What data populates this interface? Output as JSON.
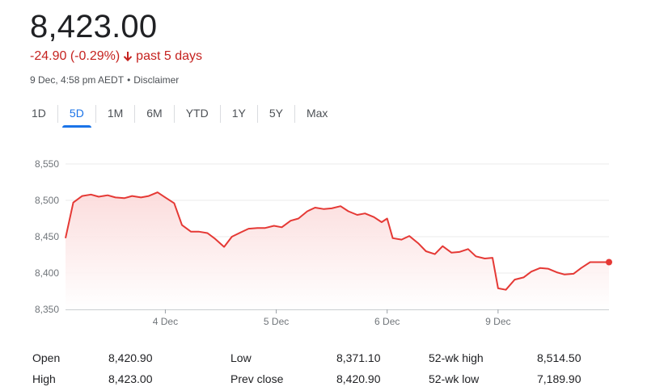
{
  "quote": {
    "price": "8,423.00",
    "change": "-24.90 (-0.29%)",
    "period": "past 5 days",
    "timestamp": "9 Dec, 4:58 pm AEDT",
    "separator": "•",
    "disclaimer": "Disclaimer"
  },
  "tabs": [
    {
      "label": "1D",
      "active": false
    },
    {
      "label": "5D",
      "active": true
    },
    {
      "label": "1M",
      "active": false
    },
    {
      "label": "6M",
      "active": false
    },
    {
      "label": "YTD",
      "active": false
    },
    {
      "label": "1Y",
      "active": false
    },
    {
      "label": "5Y",
      "active": false
    },
    {
      "label": "Max",
      "active": false
    }
  ],
  "colors": {
    "line": "#e53935",
    "fill": "#fde5e5",
    "accent": "#1a73e8",
    "negative": "#c5221f"
  },
  "chart_data": {
    "type": "area",
    "ylim": [
      8350,
      8550
    ],
    "y_ticks": [
      "8,550",
      "8,500",
      "8,450",
      "8,400",
      "8,350"
    ],
    "y_tick_values": [
      8550,
      8500,
      8450,
      8400,
      8350
    ],
    "x_ticks": [
      "4 Dec",
      "5 Dec",
      "6 Dec",
      "9 Dec"
    ],
    "x_tick_positions": [
      9,
      19,
      29,
      39
    ],
    "x_range": [
      0,
      49
    ],
    "grid": true,
    "series": [
      {
        "x": [
          0,
          0.7,
          1.5,
          2.3,
          3,
          3.8,
          4.5,
          5.3,
          6,
          6.8,
          7.5,
          8.3,
          9,
          9.8,
          10.5,
          11.3,
          12,
          12.8,
          13.5,
          14.3,
          15,
          15.8,
          16.5,
          17.3,
          18,
          18.8,
          19.5,
          20.3,
          21,
          21.8,
          22.5,
          23.3,
          24,
          24.8,
          25.5,
          26.3,
          27,
          27.8,
          28.5,
          29,
          29.5,
          30.3,
          31,
          31.8,
          32.5,
          33.3,
          34,
          34.8,
          35.5,
          36.3,
          37,
          37.8,
          38.5,
          39,
          39.7,
          40.5,
          41.3,
          42,
          42.8,
          43.5,
          44.3,
          45,
          45.8,
          46.5,
          47.3,
          48,
          48.8,
          49
        ],
        "values": [
          8448,
          8497,
          8506,
          8508,
          8505,
          8507,
          8504,
          8503,
          8506,
          8504,
          8506,
          8511,
          8504,
          8496,
          8466,
          8457,
          8457,
          8455,
          8447,
          8436,
          8450,
          8456,
          8461,
          8462,
          8462,
          8465,
          8463,
          8472,
          8475,
          8485,
          8490,
          8488,
          8489,
          8492,
          8485,
          8480,
          8482,
          8477,
          8470,
          8475,
          8448,
          8446,
          8451,
          8441,
          8430,
          8426,
          8437,
          8428,
          8429,
          8433,
          8423,
          8420,
          8421,
          8379,
          8377,
          8391,
          8394,
          8402,
          8407,
          8406,
          8401,
          8398,
          8399,
          8407,
          8415,
          8415,
          8415,
          8415
        ]
      }
    ]
  },
  "stats": [
    [
      {
        "label": "Open",
        "value": "8,420.90"
      },
      {
        "label": "Low",
        "value": "8,371.10"
      },
      {
        "label": "52-wk high",
        "value": "8,514.50"
      }
    ],
    [
      {
        "label": "High",
        "value": "8,423.00"
      },
      {
        "label": "Prev close",
        "value": "8,420.90"
      },
      {
        "label": "52-wk low",
        "value": "7,189.90"
      }
    ]
  ]
}
